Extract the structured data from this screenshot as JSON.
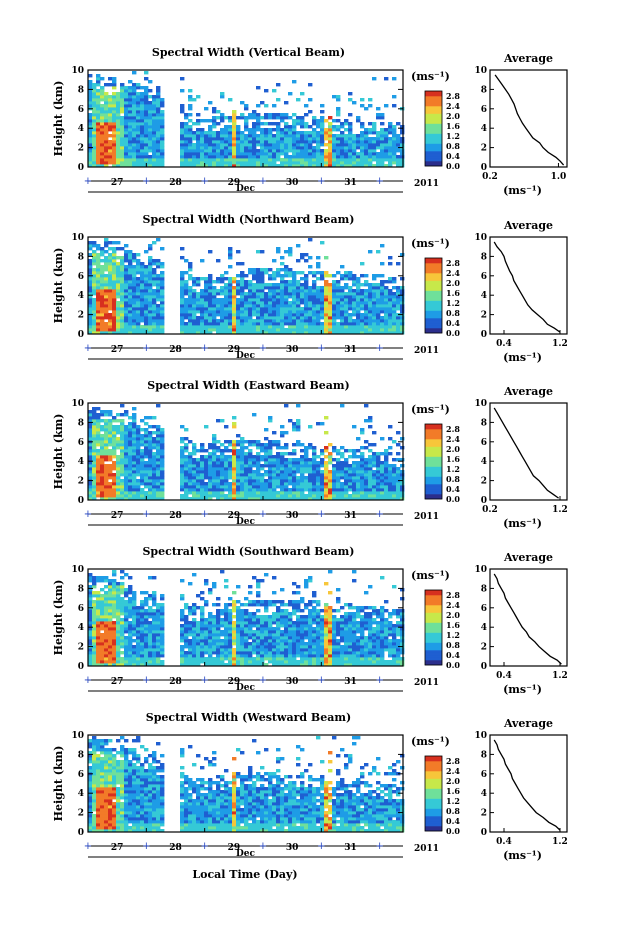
{
  "figure": {
    "xlabel": "Local Time (Day)",
    "colorbar_unit": "(ms⁻¹)",
    "colorbar_ticks": [
      "0.0",
      "0.4",
      "0.8",
      "1.2",
      "1.6",
      "2.0",
      "2.4",
      "2.8"
    ],
    "colorbar_range": [
      0.0,
      3.0
    ],
    "colormap": [
      "#2b2e8c",
      "#1f5fd1",
      "#1e9ce6",
      "#35c9d6",
      "#6fe09a",
      "#c7e84a",
      "#f7c63a",
      "#f27b28",
      "#d7301f"
    ],
    "data_gap_color": "#ffffff",
    "month_label": "Dec",
    "year_label": "2011",
    "day_labels": [
      "27",
      "28",
      "29",
      "30",
      "31"
    ],
    "height_ticks": [
      "0",
      "2",
      "4",
      "6",
      "8",
      "10"
    ],
    "height_ylabel": "Height (km)",
    "avg_ylabel_ticks": [
      "0",
      "2",
      "4",
      "6",
      "8",
      "10"
    ],
    "avg_xlabel": "(ms⁻¹)",
    "time_range_days": [
      26.5,
      31.9
    ],
    "height_range_km": [
      0,
      10
    ]
  },
  "chart_data": [
    {
      "type": "heatmap",
      "title": "Spectral Width (Vertical Beam)",
      "ylabel": "Height (km)",
      "xlabel": "Local Time (Day)",
      "x_ticks": [
        "27",
        "28",
        "29",
        "30",
        "31"
      ],
      "y_ticks": [
        "0",
        "2",
        "4",
        "6",
        "8",
        "10"
      ],
      "ylim": [
        0,
        10
      ],
      "colorbar": {
        "label": "(ms⁻¹)",
        "ticks": [
          "0.0",
          "0.4",
          "0.8",
          "1.2",
          "1.6",
          "2.0",
          "2.4",
          "2.8"
        ]
      },
      "features": {
        "echo_top_km": [
          9.8,
          8.8,
          5.0,
          5.8,
          5.5,
          5.0,
          4.5
        ],
        "strong_core_day27_km": [
          0.5,
          4.8
        ],
        "data_gap_days": [
          27.75,
          28.05
        ]
      },
      "average_profile": {
        "title": "Average",
        "xlabel": "(ms⁻¹)",
        "x_ticks": [
          "0.2",
          "1.0"
        ],
        "xlim": [
          0.2,
          1.1
        ],
        "ylim": [
          0,
          10
        ],
        "height_km": [
          0.2,
          0.6,
          1.0,
          1.5,
          2.0,
          2.5,
          3.0,
          3.5,
          4.0,
          4.5,
          5.0,
          5.5,
          6.0,
          6.5,
          7.0,
          7.5,
          8.0,
          8.5,
          9.0,
          9.5
        ],
        "value": [
          1.06,
          1.02,
          0.97,
          0.88,
          0.82,
          0.78,
          0.7,
          0.66,
          0.62,
          0.58,
          0.55,
          0.52,
          0.5,
          0.48,
          0.45,
          0.42,
          0.38,
          0.34,
          0.3,
          0.26
        ]
      }
    },
    {
      "type": "heatmap",
      "title": "Spectral Width (Northward Beam)",
      "ylabel": "Height (km)",
      "xlabel": "Local Time (Day)",
      "x_ticks": [
        "27",
        "28",
        "29",
        "30",
        "31"
      ],
      "y_ticks": [
        "0",
        "2",
        "4",
        "6",
        "8",
        "10"
      ],
      "ylim": [
        0,
        10
      ],
      "colorbar": {
        "label": "(ms⁻¹)",
        "ticks": [
          "0.0",
          "0.4",
          "0.8",
          "1.2",
          "1.6",
          "2.0",
          "2.4",
          "2.8"
        ]
      },
      "features": {
        "echo_top_km": [
          9.8,
          8.5,
          6.0,
          7.0,
          6.8,
          6.5,
          6.0
        ],
        "strong_core_day27_km": [
          0.5,
          4.8
        ],
        "data_gap_days": [
          27.75,
          28.05
        ]
      },
      "average_profile": {
        "title": "Average",
        "xlabel": "(ms⁻¹)",
        "x_ticks": [
          "0.4",
          "1.2"
        ],
        "xlim": [
          0.2,
          1.3
        ],
        "ylim": [
          0,
          10
        ],
        "height_km": [
          0.2,
          0.6,
          1.0,
          1.5,
          2.0,
          2.5,
          3.0,
          3.5,
          4.0,
          4.5,
          5.0,
          5.5,
          6.0,
          6.5,
          7.0,
          7.5,
          8.0,
          8.5,
          9.0,
          9.5
        ],
        "value": [
          1.2,
          1.12,
          1.02,
          0.96,
          0.88,
          0.8,
          0.74,
          0.7,
          0.66,
          0.62,
          0.58,
          0.54,
          0.52,
          0.48,
          0.45,
          0.42,
          0.4,
          0.36,
          0.3,
          0.26
        ]
      }
    },
    {
      "type": "heatmap",
      "title": "Spectral Width (Eastward Beam)",
      "ylabel": "Height (km)",
      "xlabel": "Local Time (Day)",
      "x_ticks": [
        "27",
        "28",
        "29",
        "30",
        "31"
      ],
      "y_ticks": [
        "0",
        "2",
        "4",
        "6",
        "8",
        "10"
      ],
      "ylim": [
        0,
        10
      ],
      "colorbar": {
        "label": "(ms⁻¹)",
        "ticks": [
          "0.0",
          "0.4",
          "0.8",
          "1.2",
          "1.6",
          "2.0",
          "2.4",
          "2.8"
        ]
      },
      "features": {
        "echo_top_km": [
          9.8,
          8.5,
          6.0,
          6.5,
          6.0,
          5.5,
          5.0
        ],
        "strong_core_day27_km": [
          0.5,
          4.8
        ],
        "data_gap_days": [
          27.75,
          28.05
        ]
      },
      "average_profile": {
        "title": "Average",
        "xlabel": "(ms⁻¹)",
        "x_ticks": [
          "0.2",
          "1.2"
        ],
        "xlim": [
          0.2,
          1.3
        ],
        "ylim": [
          0,
          10
        ],
        "height_km": [
          0.2,
          0.6,
          1.0,
          1.5,
          2.0,
          2.5,
          3.0,
          3.5,
          4.0,
          4.5,
          5.0,
          5.5,
          6.0,
          6.5,
          7.0,
          7.5,
          8.0,
          8.5,
          9.0,
          9.5
        ],
        "value": [
          1.18,
          1.1,
          1.02,
          0.96,
          0.9,
          0.82,
          0.78,
          0.74,
          0.7,
          0.66,
          0.62,
          0.58,
          0.54,
          0.5,
          0.46,
          0.42,
          0.38,
          0.34,
          0.3,
          0.26
        ]
      }
    },
    {
      "type": "heatmap",
      "title": "Spectral Width (Southward Beam)",
      "ylabel": "Height (km)",
      "xlabel": "Local Time (Day)",
      "x_ticks": [
        "27",
        "28",
        "29",
        "30",
        "31"
      ],
      "y_ticks": [
        "0",
        "2",
        "4",
        "6",
        "8",
        "10"
      ],
      "ylim": [
        0,
        10
      ],
      "colorbar": {
        "label": "(ms⁻¹)",
        "ticks": [
          "0.0",
          "0.4",
          "0.8",
          "1.2",
          "1.6",
          "2.0",
          "2.4",
          "2.8"
        ]
      },
      "features": {
        "echo_top_km": [
          9.8,
          8.0,
          6.5,
          7.0,
          7.0,
          6.5,
          6.0
        ],
        "strong_core_day27_km": [
          0.5,
          4.8
        ],
        "data_gap_days": [
          27.75,
          28.05
        ]
      },
      "average_profile": {
        "title": "Average",
        "xlabel": "(ms⁻¹)",
        "x_ticks": [
          "0.4",
          "1.2"
        ],
        "xlim": [
          0.2,
          1.3
        ],
        "ylim": [
          0,
          10
        ],
        "height_km": [
          0.2,
          0.6,
          1.0,
          1.5,
          2.0,
          2.5,
          3.0,
          3.5,
          4.0,
          4.5,
          5.0,
          5.5,
          6.0,
          6.5,
          7.0,
          7.5,
          8.0,
          8.5,
          9.0,
          9.5
        ],
        "value": [
          1.22,
          1.16,
          1.06,
          0.98,
          0.9,
          0.84,
          0.76,
          0.72,
          0.66,
          0.62,
          0.58,
          0.54,
          0.5,
          0.46,
          0.42,
          0.4,
          0.36,
          0.32,
          0.3,
          0.26
        ]
      }
    },
    {
      "type": "heatmap",
      "title": "Spectral Width (Westward Beam)",
      "ylabel": "Height (km)",
      "xlabel": "Local Time (Day)",
      "x_ticks": [
        "27",
        "28",
        "29",
        "30",
        "31"
      ],
      "y_ticks": [
        "0",
        "2",
        "4",
        "6",
        "8",
        "10"
      ],
      "ylim": [
        0,
        10
      ],
      "colorbar": {
        "label": "(ms⁻¹)",
        "ticks": [
          "0.0",
          "0.4",
          "0.8",
          "1.2",
          "1.6",
          "2.0",
          "2.4",
          "2.8"
        ]
      },
      "features": {
        "echo_top_km": [
          9.8,
          8.5,
          5.5,
          6.5,
          6.0,
          5.5,
          5.0
        ],
        "strong_core_day27_km": [
          0.5,
          4.8
        ],
        "data_gap_days": [
          27.75,
          28.05
        ]
      },
      "average_profile": {
        "title": "Average",
        "xlabel": "(ms⁻¹)",
        "x_ticks": [
          "0.4",
          "1.2"
        ],
        "xlim": [
          0.2,
          1.3
        ],
        "ylim": [
          0,
          10
        ],
        "height_km": [
          0.2,
          0.6,
          1.0,
          1.5,
          2.0,
          2.5,
          3.0,
          3.5,
          4.0,
          4.5,
          5.0,
          5.5,
          6.0,
          6.5,
          7.0,
          7.5,
          8.0,
          8.5,
          9.0,
          9.5
        ],
        "value": [
          1.2,
          1.14,
          1.04,
          0.96,
          0.86,
          0.8,
          0.74,
          0.68,
          0.64,
          0.6,
          0.56,
          0.52,
          0.5,
          0.46,
          0.42,
          0.4,
          0.36,
          0.32,
          0.3,
          0.26
        ]
      }
    }
  ]
}
